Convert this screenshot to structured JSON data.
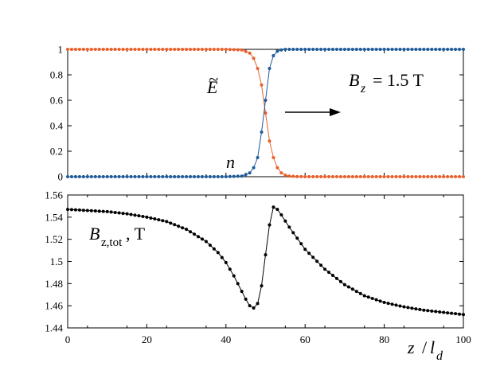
{
  "chart_data": [
    {
      "type": "line",
      "panel": "top",
      "title": "",
      "xlabel": "",
      "ylabel": "",
      "xlim": [
        0,
        100
      ],
      "ylim": [
        0,
        1
      ],
      "grid": false,
      "xticks": [
        0,
        20,
        40,
        60,
        80,
        100
      ],
      "yticks": [
        "0",
        "0.2",
        "0.4",
        "0.6",
        "0.8",
        "1"
      ],
      "annotations": {
        "e_label": "E",
        "e_tilde": "~",
        "n_label": "n",
        "b_label_main": "B",
        "b_label_sub": "z",
        "b_label_value": "= 1.5 T",
        "arrow": "right"
      },
      "series": [
        {
          "color": "#e8602c",
          "marker": "circle",
          "label_on_chart": "E",
          "x": [
            0,
            10,
            20,
            30,
            40,
            44,
            46,
            47,
            48,
            49,
            50,
            51,
            52,
            53,
            54,
            55,
            56,
            58,
            60,
            70,
            80,
            90,
            100
          ],
          "values": [
            1,
            1,
            1,
            1,
            1,
            0.995,
            0.97,
            0.93,
            0.85,
            0.72,
            0.5,
            0.28,
            0.15,
            0.07,
            0.03,
            0.012,
            0.005,
            0.001,
            0,
            0,
            0,
            0,
            0
          ]
        },
        {
          "color": "#1f5b99",
          "marker": "circle",
          "label_on_chart": "n",
          "x": [
            0,
            10,
            20,
            30,
            40,
            44,
            46,
            47,
            48,
            49,
            50,
            51,
            52,
            53,
            54,
            55,
            56,
            58,
            60,
            70,
            80,
            90,
            100
          ],
          "values": [
            0,
            0,
            0,
            0,
            0,
            0.005,
            0.03,
            0.07,
            0.15,
            0.35,
            0.6,
            0.85,
            0.95,
            0.985,
            0.995,
            1,
            1,
            1,
            1,
            1,
            1,
            1,
            1
          ]
        }
      ]
    },
    {
      "type": "line",
      "panel": "bottom",
      "title": "",
      "xlabel": "z / l_d",
      "xlabel_parts": {
        "z": "z",
        "slash": "/",
        "l": "l",
        "d": "d"
      },
      "ylabel": "",
      "xlim": [
        0,
        100
      ],
      "ylim": [
        1.44,
        1.56
      ],
      "grid": false,
      "xticks": [
        "0",
        "20",
        "40",
        "60",
        "80",
        "100"
      ],
      "yticks": [
        "1.44",
        "1.46",
        "1.48",
        "1.5",
        "1.52",
        "1.54",
        "1.56"
      ],
      "annotations": {
        "b_main": "B",
        "b_sub": "z,tot",
        "b_unit": ", T"
      },
      "series": [
        {
          "color": "#000000",
          "marker": "circle",
          "x": [
            0,
            5,
            10,
            15,
            20,
            25,
            30,
            35,
            38,
            40,
            42,
            44,
            45,
            46,
            47,
            48,
            49,
            50,
            51,
            52,
            53,
            54,
            56,
            58,
            60,
            65,
            70,
            75,
            80,
            85,
            90,
            95,
            100
          ],
          "values": [
            1.547,
            1.546,
            1.545,
            1.543,
            1.54,
            1.536,
            1.529,
            1.518,
            1.508,
            1.499,
            1.487,
            1.473,
            1.466,
            1.46,
            1.458,
            1.462,
            1.478,
            1.506,
            1.533,
            1.549,
            1.547,
            1.542,
            1.531,
            1.521,
            1.511,
            1.493,
            1.479,
            1.469,
            1.463,
            1.459,
            1.456,
            1.454,
            1.452
          ]
        }
      ]
    }
  ]
}
